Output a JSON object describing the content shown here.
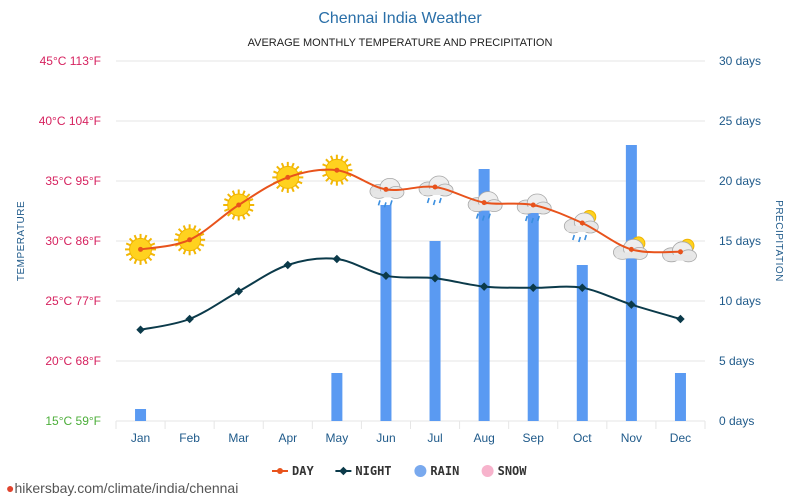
{
  "chart_data": {
    "type": "line+bar",
    "title": "Chennai India Weather",
    "subtitle": "AVERAGE MONTHLY TEMPERATURE AND PRECIPITATION",
    "categories": [
      "Jan",
      "Feb",
      "Mar",
      "Apr",
      "May",
      "Jun",
      "Jul",
      "Aug",
      "Sep",
      "Oct",
      "Nov",
      "Dec"
    ],
    "left_axis": {
      "title": "TEMPERATURE",
      "range_c": [
        15,
        45
      ],
      "ticks": [
        {
          "c": 45,
          "label": "45°C 113°F"
        },
        {
          "c": 40,
          "label": "40°C 104°F"
        },
        {
          "c": 35,
          "label": "35°C 95°F"
        },
        {
          "c": 30,
          "label": "30°C 86°F"
        },
        {
          "c": 25,
          "label": "25°C 77°F"
        },
        {
          "c": 20,
          "label": "20°C 68°F"
        },
        {
          "c": 15,
          "label": "15°C 59°F"
        }
      ]
    },
    "right_axis": {
      "title": "PRECIPITATION",
      "range_days": [
        0,
        30
      ],
      "ticks": [
        {
          "v": 30,
          "label": "30 days"
        },
        {
          "v": 25,
          "label": "25 days"
        },
        {
          "v": 20,
          "label": "20 days"
        },
        {
          "v": 15,
          "label": "15 days"
        },
        {
          "v": 10,
          "label": "10 days"
        },
        {
          "v": 5,
          "label": "5 days"
        },
        {
          "v": 0,
          "label": "0 days"
        }
      ]
    },
    "series": [
      {
        "name": "DAY",
        "unit": "°C",
        "color": "#e8531c",
        "values": [
          29.3,
          30.1,
          33.0,
          35.3,
          35.9,
          34.3,
          34.5,
          33.2,
          33.0,
          31.5,
          29.3,
          29.1
        ]
      },
      {
        "name": "NIGHT",
        "unit": "°C",
        "color": "#0b3a4a",
        "values": [
          22.6,
          23.5,
          25.8,
          28.0,
          28.5,
          27.1,
          26.9,
          26.2,
          26.1,
          26.1,
          24.7,
          23.5
        ]
      },
      {
        "name": "RAIN",
        "unit": "days",
        "color": "#5a9af2",
        "values": [
          1,
          0,
          0,
          0,
          4,
          18,
          15,
          21,
          18,
          13,
          23,
          4
        ]
      },
      {
        "name": "SNOW",
        "unit": "days",
        "color": "#f7b3cc",
        "values": [
          0,
          0,
          0,
          0,
          0,
          0,
          0,
          0,
          0,
          0,
          0,
          0
        ]
      }
    ],
    "weather_icons": [
      "sun-icon",
      "sun-icon",
      "sun-icon",
      "sun-icon",
      "sun-icon",
      "rain-cloud-icon",
      "rain-cloud-icon",
      "rain-cloud-icon",
      "rain-cloud-icon",
      "partly-cloudy-icon",
      "partly-cloudy-icon",
      "partly-cloudy-icon"
    ],
    "legend": [
      {
        "label": "DAY",
        "symbol": "line-dot",
        "color": "#e8531c"
      },
      {
        "label": "NIGHT",
        "symbol": "line-diamond",
        "color": "#0b3a4a"
      },
      {
        "label": "RAIN",
        "symbol": "circle",
        "color": "#79a9ee"
      },
      {
        "label": "SNOW",
        "symbol": "circle",
        "color": "#f7b3cc"
      }
    ],
    "colors": {
      "hot_tick": "#d6225f",
      "cool_tick": "#4cae3a",
      "grid": "#e6e6e6"
    }
  },
  "footer": {
    "text": "hikersbay.com/climate/india/chennai"
  }
}
